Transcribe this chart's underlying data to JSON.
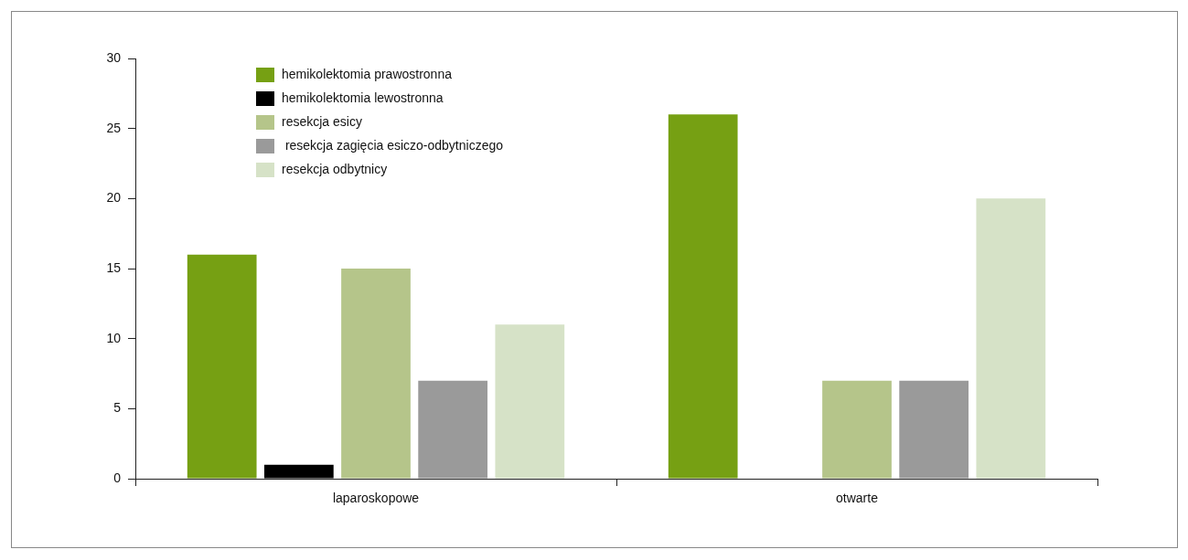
{
  "chart_data": {
    "type": "bar",
    "categories": [
      "laparoskopowe",
      "otwarte"
    ],
    "series": [
      {
        "name": "hemikolektomia prawostronna",
        "color": "#76a013",
        "values": [
          16,
          26
        ]
      },
      {
        "name": "hemikolektomia lewostronna",
        "color": "#000000",
        "values": [
          1,
          0
        ]
      },
      {
        "name": "resekcja esicy",
        "color": "#b5c58a",
        "values": [
          15,
          7
        ]
      },
      {
        "name": " resekcja zagięcia esiczo-odbytniczego",
        "color": "#9a9a9a",
        "values": [
          7,
          7
        ]
      },
      {
        "name": "resekcja odbytnicy",
        "color": "#d6e2c7",
        "values": [
          11,
          20
        ]
      }
    ],
    "ylim": [
      0,
      30
    ],
    "yticks": [
      0,
      5,
      10,
      15,
      20,
      25,
      30
    ],
    "grid": false,
    "legend": "top left"
  }
}
